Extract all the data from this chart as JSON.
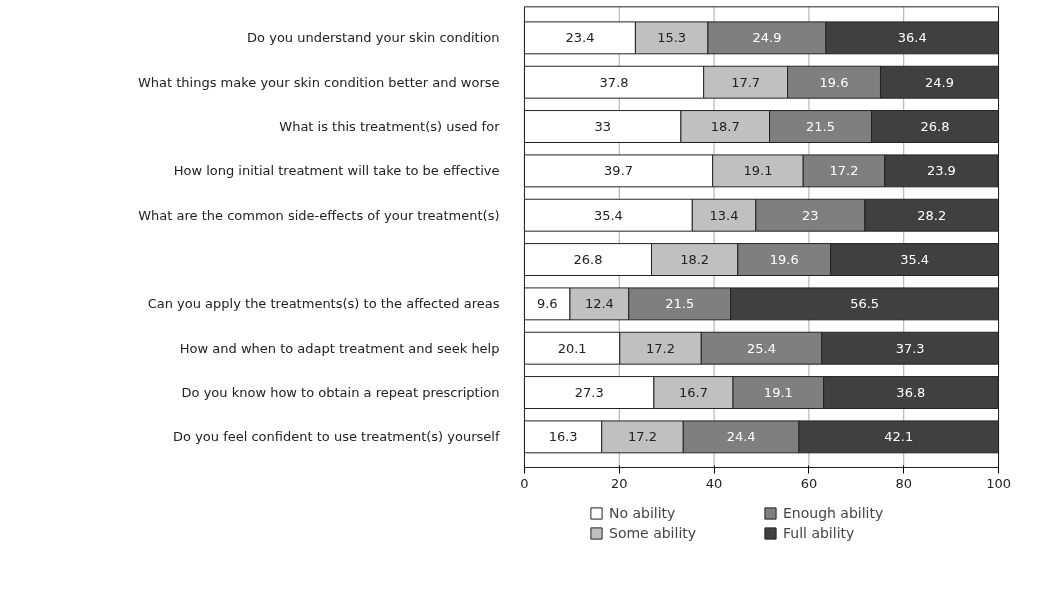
{
  "chart_data": {
    "type": "bar",
    "orientation": "horizontal",
    "stacked": true,
    "data_labels": true,
    "grid": "x",
    "legend": "bottom",
    "categories": [
      "Do you understand your skin condition",
      "What things make your skin condition better and worse",
      "What is this treatment(s) used for",
      "How long initial treatment will take to be effective",
      "What are the common side-effects of your treatment(s)",
      null,
      "Can you apply the treatments(s) to the affected areas",
      "How and when to adapt treatment and seek help",
      "Do you know how to obtain a repeat prescription",
      "Do you feel confident to use treatment(s) yourself"
    ],
    "xlim": [
      0,
      100
    ],
    "xticks": [
      0,
      20,
      40,
      60,
      80,
      100
    ],
    "series": [
      {
        "name": "No ability",
        "color": "#ffffff",
        "values": [
          23.4,
          37.8,
          33,
          39.7,
          35.4,
          26.8,
          9.6,
          20.1,
          27.3,
          16.3
        ]
      },
      {
        "name": "Some ability",
        "color": "#c0c0c0",
        "values": [
          15.3,
          17.7,
          18.7,
          19.1,
          13.4,
          18.2,
          12.4,
          17.2,
          16.7,
          17.2
        ]
      },
      {
        "name": "Enough ability",
        "color": "#7f7f7f",
        "values": [
          24.9,
          19.6,
          21.5,
          17.2,
          23,
          19.6,
          21.5,
          25.4,
          19.1,
          24.4
        ]
      },
      {
        "name": "Full ability",
        "color": "#404040",
        "values": [
          36.4,
          24.9,
          26.8,
          23.9,
          28.2,
          35.4,
          56.5,
          37.3,
          36.8,
          42.1
        ]
      }
    ]
  }
}
